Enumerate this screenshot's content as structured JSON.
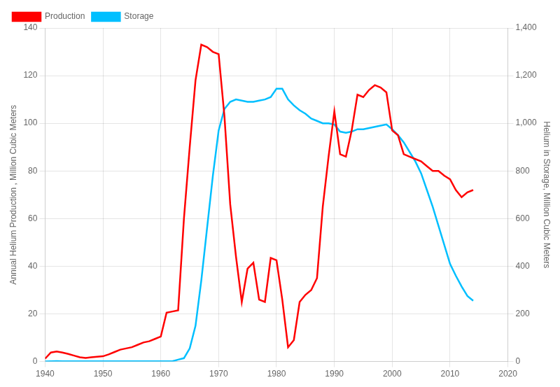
{
  "chart_data": {
    "type": "line",
    "ylabel": "Annual Helium Production , Million Cubic Meters",
    "y2label": "Helium in Storage, Million Cubic Meters",
    "x": [
      1940,
      1941,
      1942,
      1943,
      1944,
      1945,
      1946,
      1947,
      1948,
      1949,
      1950,
      1951,
      1952,
      1953,
      1954,
      1955,
      1956,
      1957,
      1958,
      1959,
      1960,
      1961,
      1962,
      1963,
      1964,
      1965,
      1966,
      1967,
      1968,
      1969,
      1970,
      1971,
      1972,
      1973,
      1974,
      1975,
      1976,
      1977,
      1978,
      1979,
      1980,
      1981,
      1982,
      1983,
      1984,
      1985,
      1986,
      1987,
      1988,
      1989,
      1990,
      1991,
      1992,
      1993,
      1994,
      1995,
      1996,
      1997,
      1998,
      1999,
      2000,
      2001,
      2002,
      2003,
      2004,
      2005,
      2006,
      2007,
      2008,
      2009,
      2010,
      2011,
      2012,
      2013,
      2014
    ],
    "series": [
      {
        "name": "Production",
        "color": "#FF0000",
        "axis": "y",
        "values": [
          1.2,
          3.8,
          4.2,
          3.8,
          3.2,
          2.5,
          1.8,
          1.5,
          1.8,
          2.0,
          2.2,
          3.0,
          4.0,
          5.0,
          5.5,
          6.0,
          7.0,
          8.0,
          8.5,
          9.5,
          10.5,
          20.5,
          21.0,
          21.5,
          60.0,
          90.0,
          118.0,
          133.0,
          132.0,
          130.0,
          129.0,
          103.0,
          66.0,
          44.0,
          25.0,
          39.0,
          41.5,
          26.0,
          25.0,
          43.5,
          42.5,
          26.0,
          6.0,
          9.0,
          25.0,
          28.0,
          30.0,
          35.0,
          65.0,
          86.0,
          105.0,
          87.0,
          86.0,
          97.0,
          112.0,
          111.0,
          114.0,
          116.0,
          115.0,
          113.0,
          97.0,
          95.0,
          87.0,
          86.0,
          85.0,
          84.0,
          82.0,
          80.0,
          80.0,
          78.0,
          76.5,
          72.0,
          69.0,
          71.0,
          72.0
        ]
      },
      {
        "name": "Storage",
        "color": "#00BFFF",
        "axis": "y2",
        "values": [
          0.5,
          1.0,
          1.5,
          1.2,
          1.0,
          0.8,
          0.8,
          0.8,
          0.8,
          0.9,
          1.0,
          1.0,
          1.0,
          1.0,
          1.0,
          1.0,
          1.0,
          1.0,
          1.0,
          1.0,
          1.0,
          1.0,
          1.0,
          8.0,
          14.0,
          55.0,
          150.0,
          340.0,
          560.0,
          780.0,
          970.0,
          1060.0,
          1090.0,
          1100.0,
          1095.0,
          1090.0,
          1090.0,
          1095.0,
          1100.0,
          1110.0,
          1145.0,
          1145.0,
          1100.0,
          1075.0,
          1055.0,
          1040.0,
          1020.0,
          1010.0,
          1000.0,
          1000.0,
          995.0,
          965.0,
          960.0,
          965.0,
          975.0,
          975.0,
          980.0,
          985.0,
          990.0,
          995.0,
          975.0,
          950.0,
          920.0,
          880.0,
          840.0,
          790.0,
          720.0,
          650.0,
          570.0,
          490.0,
          410.0,
          360.0,
          315.0,
          275.0,
          255.0
        ]
      }
    ],
    "xlim": [
      1940,
      2020
    ],
    "xticks": [
      1940,
      1950,
      1960,
      1970,
      1980,
      1990,
      2000,
      2010,
      2020
    ],
    "ylim": [
      0,
      140
    ],
    "yticks": [
      0,
      20,
      40,
      60,
      80,
      100,
      120,
      140
    ],
    "y2lim": [
      0,
      1400
    ],
    "y2ticks": [
      0,
      200,
      400,
      600,
      800,
      {
        "value": 1000,
        "label": "1,000"
      },
      {
        "value": 1200,
        "label": "1,200"
      },
      {
        "value": 1400,
        "label": "1,400"
      }
    ],
    "grid": true,
    "legend": "upper left"
  }
}
